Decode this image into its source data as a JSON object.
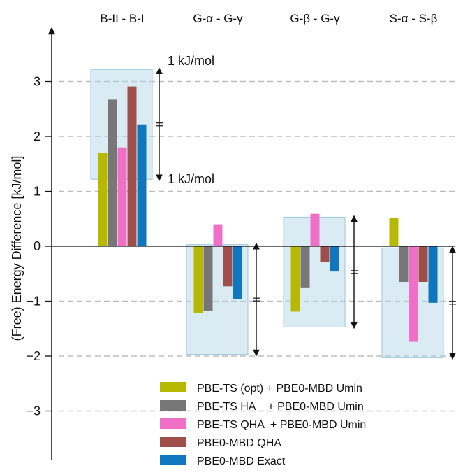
{
  "chart_data": {
    "type": "bar",
    "ylabel": "(Free) Energy Difference [kJ/mol]",
    "ylim": [
      -3.9,
      4.0
    ],
    "yticks": [
      3,
      2,
      1,
      0,
      -1,
      -2,
      -3
    ],
    "ytick_labels": [
      "3",
      "2",
      "1",
      "0",
      "−1",
      "−2",
      "−3"
    ],
    "grid": "horizontal dashed at major ticks",
    "categories": [
      "B-II - B-I",
      "G-α - G-γ",
      "G-β - G-γ",
      "S-α - S-β"
    ],
    "series": [
      {
        "name": "PBE-TS (opt) + PBE0-MBD Umin",
        "color": "#b7b800",
        "values": [
          1.7,
          -1.22,
          -1.19,
          0.52
        ]
      },
      {
        "name": "PBE-TS HA    + PBE0-MBD Umin",
        "color": "#777777",
        "values": [
          2.67,
          -1.18,
          -0.75,
          -0.65
        ]
      },
      {
        "name": "PBE-TS QHA  + PBE0-MBD Umin",
        "color": "#f070c8",
        "values": [
          1.8,
          0.4,
          0.59,
          -1.74
        ]
      },
      {
        "name": "PBE0-MBD QHA",
        "color": "#9e4f4a",
        "values": [
          2.91,
          -0.73,
          -0.29,
          -0.65
        ]
      },
      {
        "name": "PBE0-MBD Exact",
        "color": "#0e77bd",
        "values": [
          2.22,
          -0.96,
          -0.46,
          -1.03
        ]
      }
    ],
    "ranges": [
      {
        "category": "B-II - B-I",
        "low": 1.22,
        "high": 3.22
      },
      {
        "category": "G-α - G-γ",
        "low": -1.97,
        "high": 0.03
      },
      {
        "category": "G-β - G-γ",
        "low": -1.47,
        "high": 0.53
      },
      {
        "category": "S-α - S-β",
        "low": -2.03,
        "high": -0.03
      }
    ],
    "annotations": [
      "1 kJ/mol",
      "1 kJ/mol"
    ],
    "legend_position": "bottom-right"
  }
}
